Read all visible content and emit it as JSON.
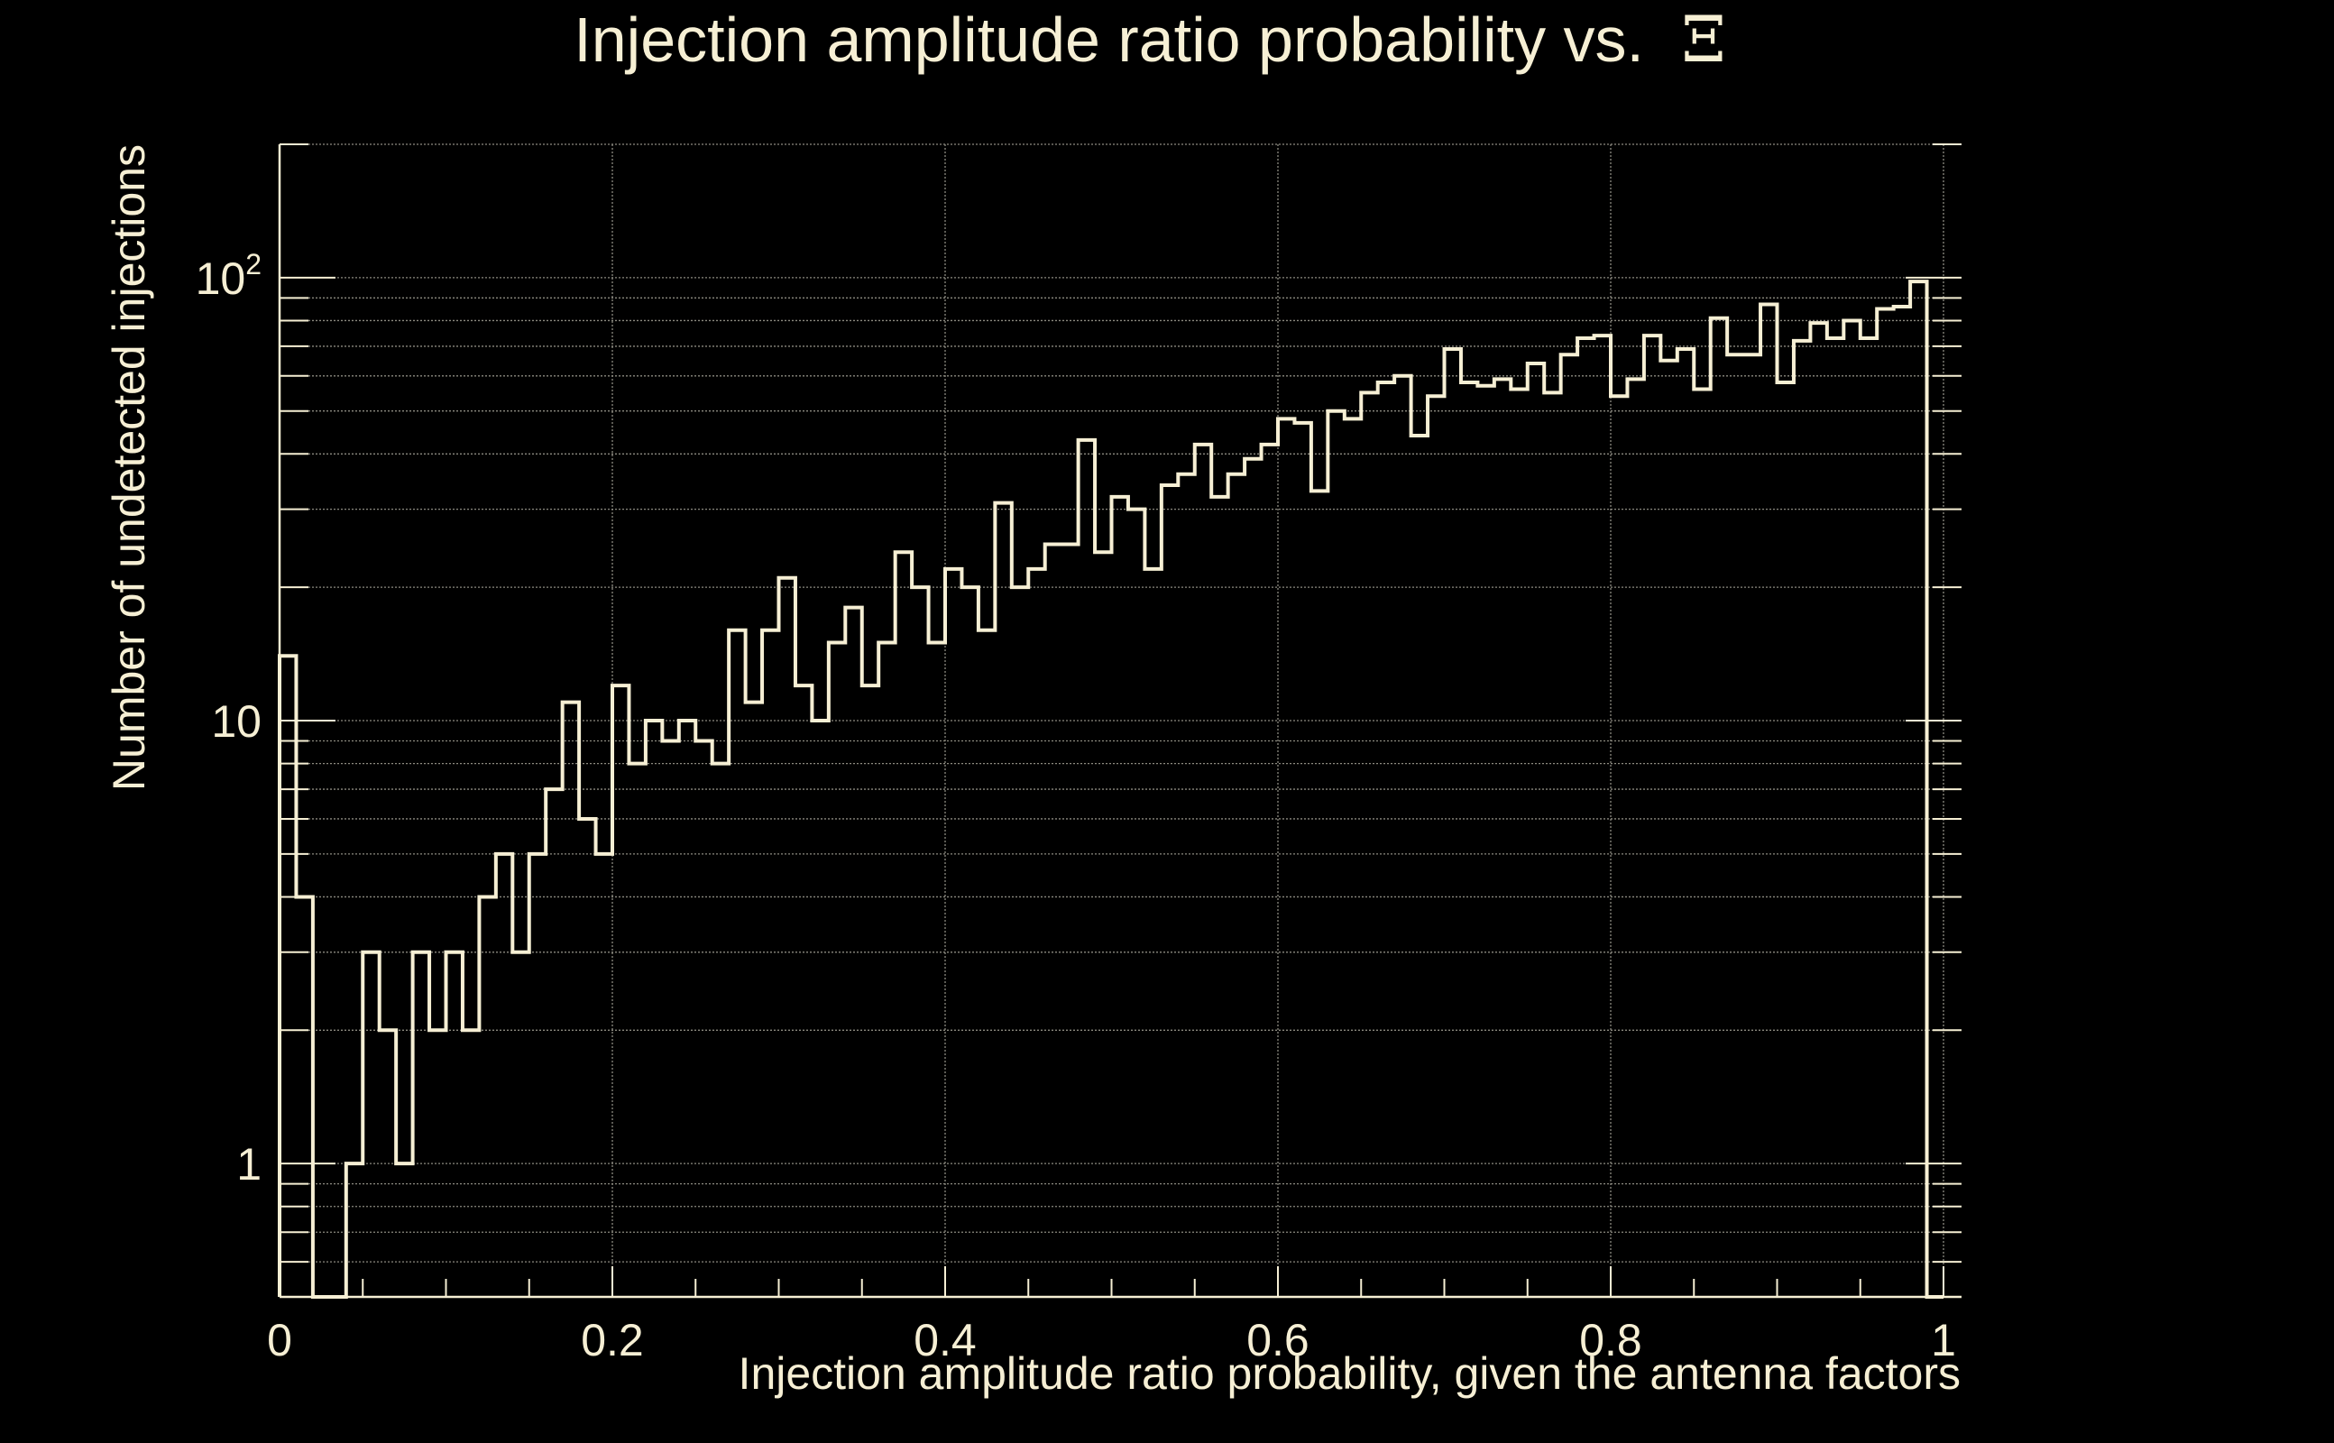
{
  "chart_data": {
    "type": "histogram",
    "title": "Injection amplitude ratio probability vs.",
    "title_symbol": "Ξ",
    "xlabel": "Injection amplitude ratio probability, given the antenna factors",
    "ylabel": "Number of undetected injections",
    "xlim": [
      0,
      1
    ],
    "ylim": [
      0.5,
      200
    ],
    "yscale": "log",
    "grid": true,
    "x_tick_labels": [
      "0",
      "0.2",
      "0.4",
      "0.6",
      "0.8",
      "1"
    ],
    "x_tick_values": [
      0,
      0.2,
      0.4,
      0.6,
      0.8,
      1
    ],
    "y_tick_labels": [
      {
        "base": "1",
        "exp": ""
      },
      {
        "base": "10",
        "exp": ""
      },
      {
        "base": "10",
        "exp": "2"
      }
    ],
    "y_tick_values": [
      1,
      10,
      100
    ],
    "bin_width": 0.01,
    "values": [
      14,
      4,
      0,
      0,
      1,
      3,
      2,
      1,
      3,
      2,
      3,
      2,
      4,
      5,
      3,
      5,
      7,
      11,
      6,
      5,
      12,
      8,
      10,
      9,
      10,
      9,
      8,
      16,
      11,
      16,
      21,
      12,
      10,
      15,
      18,
      12,
      15,
      24,
      20,
      15,
      22,
      20,
      16,
      31,
      20,
      22,
      25,
      25,
      43,
      24,
      32,
      30,
      22,
      34,
      36,
      42,
      32,
      36,
      39,
      42,
      48,
      47,
      33,
      50,
      48,
      55,
      58,
      60,
      44,
      54,
      69,
      58,
      57,
      59,
      56,
      64,
      55,
      67,
      73,
      74,
      54,
      59,
      74,
      65,
      69,
      56,
      81,
      67,
      67,
      87,
      58,
      72,
      79,
      73,
      80,
      73,
      85,
      86,
      98,
      0
    ]
  },
  "colors": {
    "background": "#000000",
    "foreground": "#f6efd4",
    "grid": "#8c8a80"
  }
}
